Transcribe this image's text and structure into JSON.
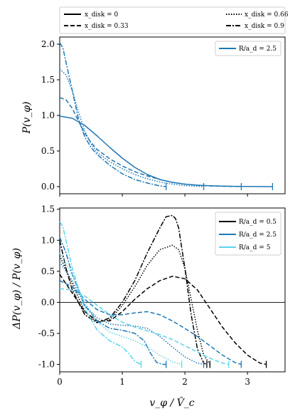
{
  "chart_data": [
    {
      "type": "legend",
      "entries": [
        {
          "label": "x_disk = 0",
          "style": "solid"
        },
        {
          "label": "x_disk = 0.33",
          "style": "dashed"
        },
        {
          "label": "x_disk = 0.66",
          "style": "dotted"
        },
        {
          "label": "x_disk = 0.9",
          "style": "dashdot"
        }
      ]
    },
    {
      "type": "line",
      "ylabel": "P(v_φ)",
      "xlim": [
        0,
        3.6
      ],
      "ylim": [
        -0.1,
        2.1
      ],
      "yticks": [
        "0.0",
        "0.5",
        "1.0",
        "1.5",
        "2.0"
      ],
      "legend": {
        "label": "R/a_d = 2.5",
        "color": "#1f77b4",
        "placement": "upper right"
      },
      "series": [
        {
          "x_disk": 0,
          "style": "solid",
          "color": "#1f77b4",
          "x": [
            0,
            0.2,
            0.4,
            0.6,
            0.8,
            1.0,
            1.2,
            1.4,
            1.6,
            1.8,
            2.0,
            2.2,
            2.4,
            2.6,
            2.8,
            3.0,
            3.2,
            3.4
          ],
          "y": [
            0.99,
            0.96,
            0.86,
            0.71,
            0.55,
            0.4,
            0.27,
            0.17,
            0.1,
            0.06,
            0.035,
            0.02,
            0.012,
            0.007,
            0.004,
            0.002,
            0.001,
            0.0
          ],
          "end_x": 3.4
        },
        {
          "x_disk": 0.33,
          "style": "dashed",
          "color": "#1f77b4",
          "x": [
            0,
            0.1,
            0.2,
            0.3,
            0.4,
            0.5,
            0.6,
            0.8,
            1.0,
            1.2,
            1.4,
            1.6,
            1.8,
            2.0,
            2.2,
            2.4,
            2.6,
            2.8,
            2.9
          ],
          "y": [
            1.25,
            1.22,
            1.1,
            0.92,
            0.75,
            0.62,
            0.52,
            0.39,
            0.29,
            0.21,
            0.15,
            0.1,
            0.06,
            0.035,
            0.02,
            0.01,
            0.005,
            0.002,
            0.0
          ],
          "end_x": 2.9
        },
        {
          "x_disk": 0.66,
          "style": "dotted",
          "color": "#1f77b4",
          "x": [
            0,
            0.1,
            0.2,
            0.3,
            0.4,
            0.5,
            0.6,
            0.8,
            1.0,
            1.2,
            1.4,
            1.6,
            1.8,
            2.0,
            2.2,
            2.3
          ],
          "y": [
            1.65,
            1.57,
            1.35,
            1.05,
            0.78,
            0.6,
            0.48,
            0.35,
            0.25,
            0.17,
            0.11,
            0.065,
            0.035,
            0.015,
            0.005,
            0.0
          ],
          "end_x": 2.3
        },
        {
          "x_disk": 0.9,
          "style": "dashdot",
          "color": "#1f77b4",
          "x": [
            0,
            0.05,
            0.1,
            0.2,
            0.3,
            0.4,
            0.5,
            0.6,
            0.8,
            1.0,
            1.2,
            1.4,
            1.6,
            1.7
          ],
          "y": [
            2.02,
            1.95,
            1.75,
            1.35,
            0.95,
            0.7,
            0.55,
            0.45,
            0.3,
            0.18,
            0.1,
            0.05,
            0.01,
            0.0
          ],
          "end_x": 1.7
        }
      ]
    },
    {
      "type": "line",
      "xlabel": "v_φ / V̂_c",
      "ylabel": "ΔP(v_φ) / P(v_φ)",
      "xlim": [
        0,
        3.6
      ],
      "ylim": [
        -1.12,
        1.52
      ],
      "xticks": [
        "0",
        "1",
        "2",
        "3"
      ],
      "yticks": [
        "-1.0",
        "-0.5",
        "0.0",
        "0.5",
        "1.0",
        "1.5"
      ],
      "legend": [
        {
          "label": "R/a_d = 0.5",
          "color": "#000000"
        },
        {
          "label": "R/a_d = 2.5",
          "color": "#1f77b4"
        },
        {
          "label": "R/a_d = 5",
          "color": "#5ad3eb"
        }
      ],
      "series": [
        {
          "R_ad": 0.5,
          "x_disk": 0.33,
          "style": "dashed",
          "color": "#000000",
          "x": [
            0,
            0.2,
            0.4,
            0.6,
            0.8,
            1.0,
            1.2,
            1.4,
            1.6,
            1.8,
            2.0,
            2.2,
            2.4,
            2.6,
            2.8,
            3.0,
            3.2,
            3.3
          ],
          "y": [
            0.45,
            0.15,
            -0.15,
            -0.3,
            -0.3,
            -0.15,
            0.05,
            0.22,
            0.35,
            0.42,
            0.38,
            0.2,
            -0.1,
            -0.4,
            -0.65,
            -0.85,
            -0.98,
            -1.0
          ],
          "end_x": 3.3
        },
        {
          "R_ad": 0.5,
          "x_disk": 0.66,
          "style": "dotted",
          "color": "#000000",
          "x": [
            0,
            0.2,
            0.4,
            0.6,
            0.8,
            1.0,
            1.2,
            1.4,
            1.6,
            1.8,
            1.9,
            2.0,
            2.1,
            2.2,
            2.3,
            2.4
          ],
          "y": [
            0.75,
            0.3,
            -0.15,
            -0.32,
            -0.28,
            -0.05,
            0.25,
            0.6,
            0.85,
            0.92,
            0.85,
            0.55,
            0.05,
            -0.45,
            -0.85,
            -1.0
          ],
          "end_x": 2.4
        },
        {
          "R_ad": 0.5,
          "x_disk": 0.9,
          "style": "dashdot",
          "color": "#000000",
          "x": [
            0,
            0.1,
            0.2,
            0.4,
            0.6,
            0.8,
            1.0,
            1.2,
            1.4,
            1.6,
            1.7,
            1.8,
            1.85,
            1.9,
            2.0,
            2.1,
            2.2,
            2.3,
            2.35
          ],
          "y": [
            1.0,
            0.55,
            0.2,
            -0.2,
            -0.33,
            -0.25,
            0.0,
            0.35,
            0.8,
            1.2,
            1.38,
            1.4,
            1.35,
            1.2,
            0.55,
            -0.2,
            -0.75,
            -0.98,
            -1.0
          ],
          "end_x": 2.35
        },
        {
          "R_ad": 2.5,
          "x_disk": 0.33,
          "style": "dashed",
          "color": "#1f77b4",
          "x": [
            0,
            0.2,
            0.4,
            0.6,
            0.8,
            1.0,
            1.2,
            1.4,
            1.6,
            1.8,
            2.0,
            2.2,
            2.4,
            2.6,
            2.8,
            2.9
          ],
          "y": [
            0.35,
            0.25,
            0.05,
            -0.12,
            -0.2,
            -0.2,
            -0.17,
            -0.15,
            -0.2,
            -0.3,
            -0.42,
            -0.55,
            -0.7,
            -0.85,
            -0.97,
            -1.0
          ],
          "end_x": 2.9
        },
        {
          "R_ad": 2.5,
          "x_disk": 0.66,
          "style": "dotted",
          "color": "#1f77b4",
          "x": [
            0,
            0.2,
            0.4,
            0.6,
            0.8,
            1.0,
            1.2,
            1.4,
            1.6,
            1.8,
            2.0,
            2.2,
            2.3
          ],
          "y": [
            0.65,
            0.35,
            -0.05,
            -0.25,
            -0.35,
            -0.37,
            -0.38,
            -0.42,
            -0.55,
            -0.72,
            -0.88,
            -0.98,
            -1.0
          ],
          "end_x": 2.3
        },
        {
          "R_ad": 2.5,
          "x_disk": 0.9,
          "style": "dashdot",
          "color": "#1f77b4",
          "x": [
            0,
            0.1,
            0.2,
            0.4,
            0.6,
            0.8,
            1.0,
            1.2,
            1.35,
            1.45,
            1.55,
            1.65,
            1.7
          ],
          "y": [
            1.05,
            0.8,
            0.45,
            -0.05,
            -0.3,
            -0.42,
            -0.45,
            -0.5,
            -0.62,
            -0.82,
            -0.97,
            -1.0,
            -1.0
          ],
          "end_x": 1.7
        },
        {
          "R_ad": 5,
          "x_disk": 0.33,
          "style": "dashed",
          "color": "#5ad3eb",
          "x": [
            0,
            0.2,
            0.4,
            0.6,
            0.8,
            1.0,
            1.2,
            1.4,
            1.6,
            1.8,
            2.0,
            2.2,
            2.4,
            2.6,
            2.7
          ],
          "y": [
            0.22,
            0.2,
            0.1,
            -0.05,
            -0.2,
            -0.32,
            -0.4,
            -0.46,
            -0.52,
            -0.6,
            -0.7,
            -0.8,
            -0.9,
            -0.98,
            -1.0
          ],
          "end_x": 2.7
        },
        {
          "R_ad": 5,
          "x_disk": 0.66,
          "style": "dotted",
          "color": "#5ad3eb",
          "x": [
            0,
            0.2,
            0.4,
            0.6,
            0.8,
            1.0,
            1.2,
            1.4,
            1.6,
            1.8,
            1.95
          ],
          "y": [
            0.8,
            0.45,
            0.0,
            -0.32,
            -0.48,
            -0.55,
            -0.62,
            -0.72,
            -0.85,
            -0.96,
            -1.0
          ],
          "end_x": 1.95
        },
        {
          "R_ad": 5,
          "x_disk": 0.9,
          "style": "dashdot",
          "color": "#5ad3eb",
          "x": [
            0,
            0.05,
            0.1,
            0.2,
            0.4,
            0.6,
            0.8,
            1.0,
            1.1,
            1.2,
            1.3
          ],
          "y": [
            1.3,
            1.22,
            1.0,
            0.55,
            -0.1,
            -0.45,
            -0.62,
            -0.72,
            -0.82,
            -0.95,
            -1.0
          ],
          "end_x": 1.3
        }
      ]
    }
  ]
}
